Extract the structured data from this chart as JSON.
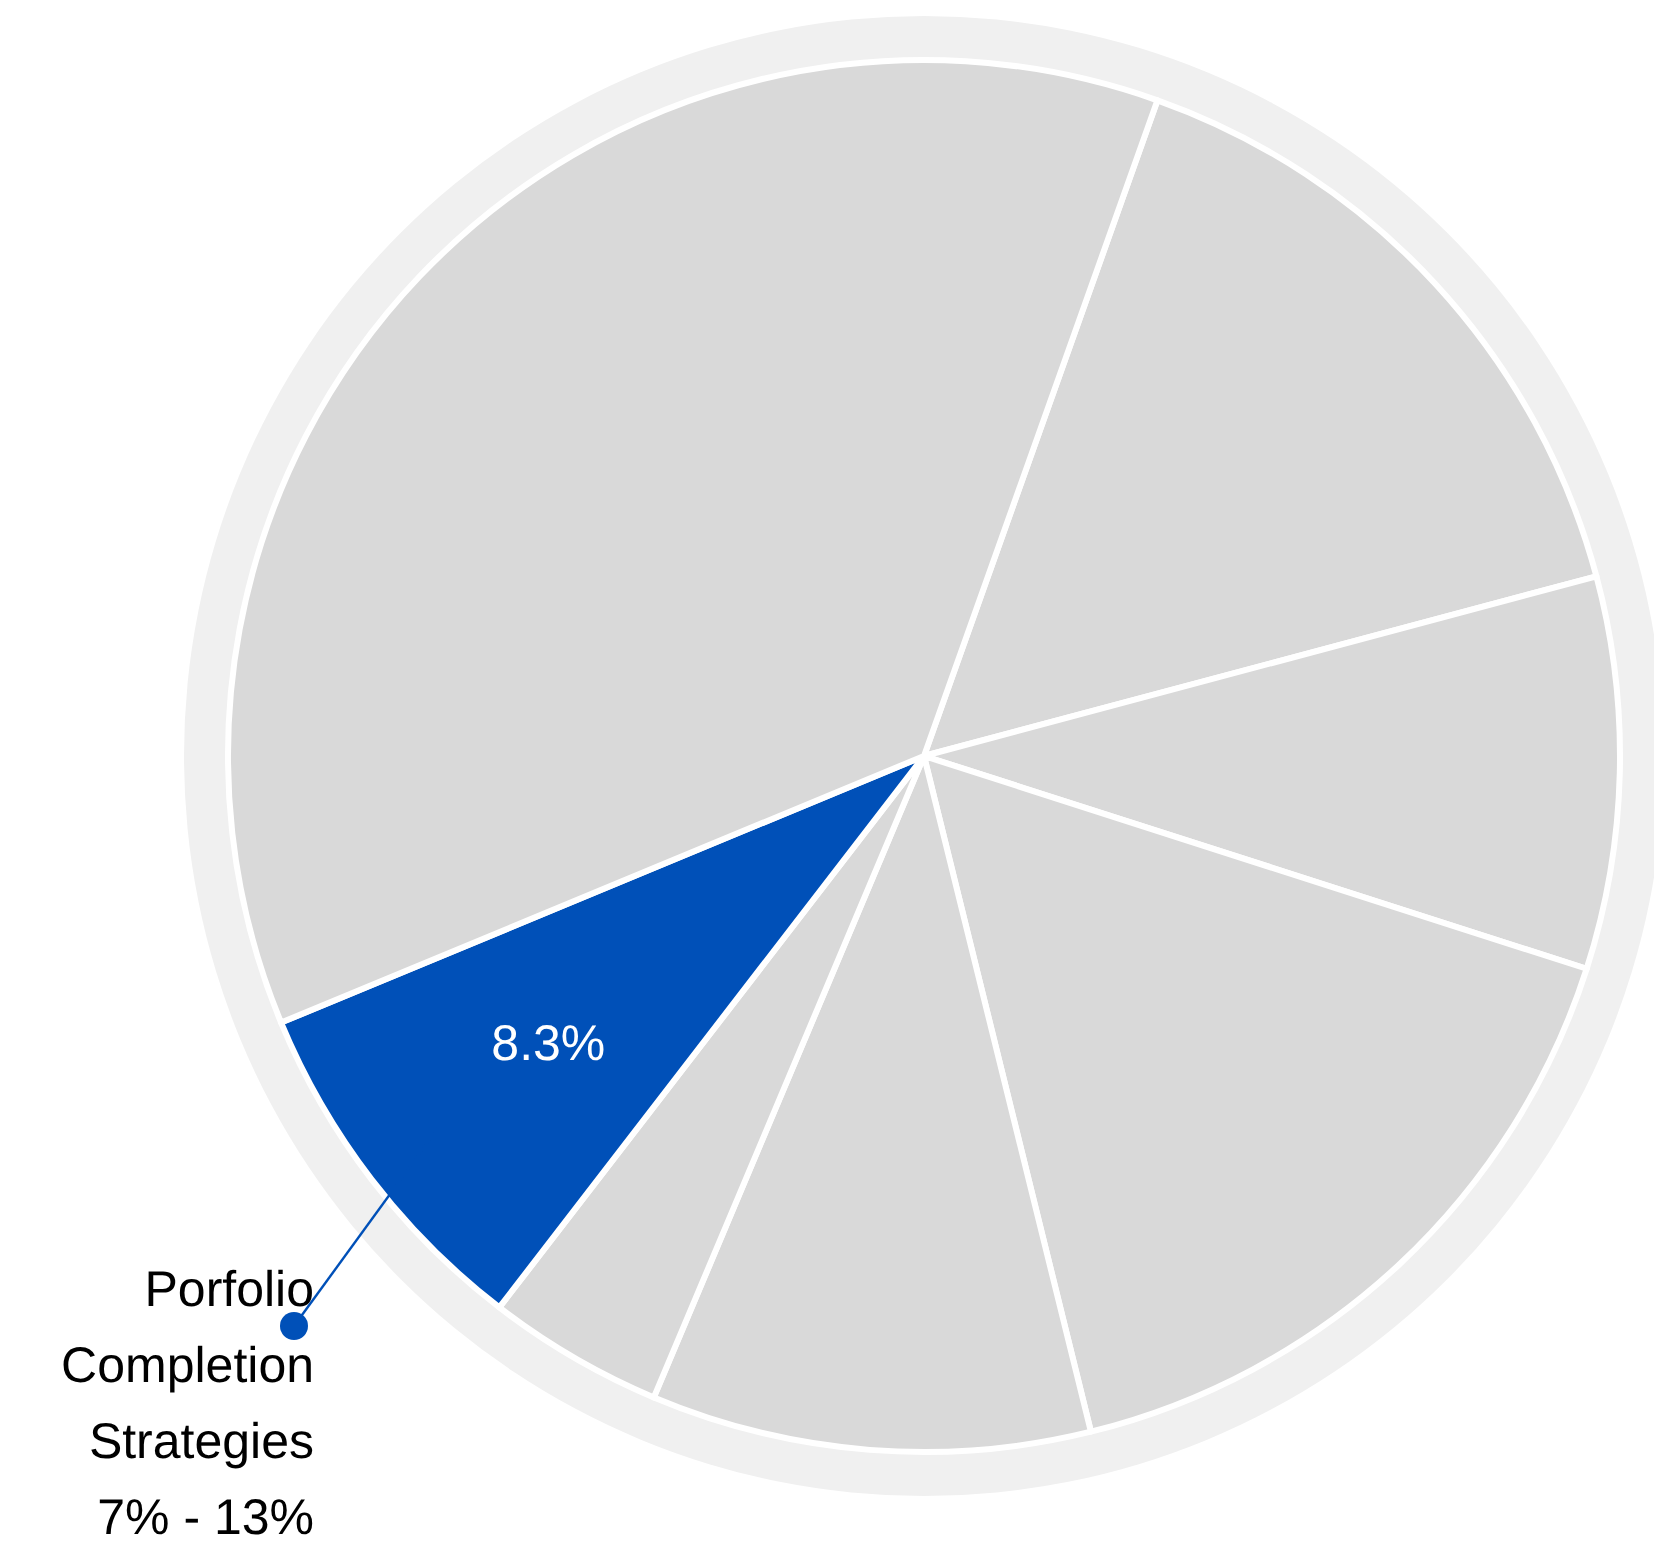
{
  "chart_data": {
    "type": "pie",
    "categories": [
      null,
      null,
      null,
      null,
      null,
      "Porfolio Completion Strategies",
      null
    ],
    "values": [
      15.4,
      9.1,
      16.2,
      10.2,
      4.1,
      8.3,
      36.7
    ],
    "colors": [
      "#d9d9d9",
      "#d9d9d9",
      "#d9d9d9",
      "#d9d9d9",
      "#d9d9d9",
      "#0050b8",
      "#d9d9d9"
    ],
    "value_labels": [
      null,
      null,
      null,
      null,
      null,
      "8.3%",
      null
    ],
    "annotations": [
      "7% - 13%"
    ]
  }
}
